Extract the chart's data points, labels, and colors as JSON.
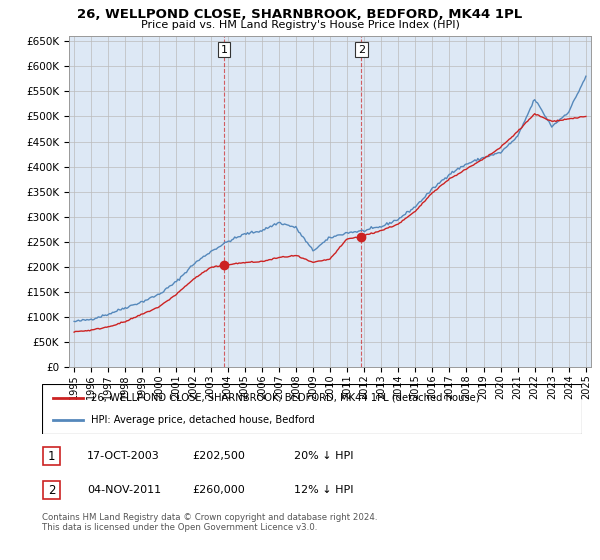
{
  "title": "26, WELLPOND CLOSE, SHARNBROOK, BEDFORD, MK44 1PL",
  "subtitle": "Price paid vs. HM Land Registry's House Price Index (HPI)",
  "ylim": [
    0,
    660000
  ],
  "yticks": [
    0,
    50000,
    100000,
    150000,
    200000,
    250000,
    300000,
    350000,
    400000,
    450000,
    500000,
    550000,
    600000,
    650000
  ],
  "background_color": "#ffffff",
  "plot_bg_color": "#dde8f5",
  "grid_color": "#bbbbbb",
  "red_line_color": "#cc2222",
  "blue_line_color": "#5588bb",
  "purchase1_x": 2003.79,
  "purchase1_y": 202500,
  "purchase1_label": "1",
  "purchase1_date": "17-OCT-2003",
  "purchase1_price": "£202,500",
  "purchase1_hpi": "20% ↓ HPI",
  "purchase2_x": 2011.84,
  "purchase2_y": 260000,
  "purchase2_label": "2",
  "purchase2_date": "04-NOV-2011",
  "purchase2_price": "£260,000",
  "purchase2_hpi": "12% ↓ HPI",
  "legend_line1": "26, WELLPOND CLOSE, SHARNBROOK, BEDFORD, MK44 1PL (detached house)",
  "legend_line2": "HPI: Average price, detached house, Bedford",
  "footnote1": "Contains HM Land Registry data © Crown copyright and database right 2024.",
  "footnote2": "This data is licensed under the Open Government Licence v3.0.",
  "xmin": 1995,
  "xmax": 2025
}
